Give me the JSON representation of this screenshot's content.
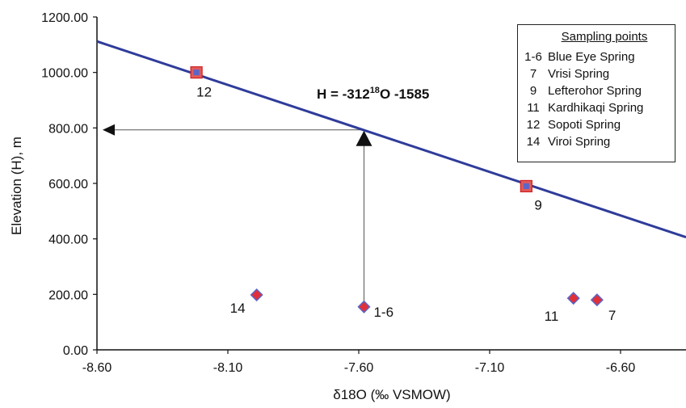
{
  "chart_data": {
    "type": "scatter",
    "xlabel": "δ18O (‰ VSMOW)",
    "ylabel": "Elevation (H), m",
    "xlim": [
      -8.6,
      -6.35
    ],
    "ylim": [
      0,
      1200
    ],
    "xticks": [
      -8.6,
      -8.1,
      -7.6,
      -7.1,
      -6.6
    ],
    "xtick_labels": [
      "-8.60",
      "-8.10",
      "-7.60",
      "-7.10",
      "-6.60"
    ],
    "yticks": [
      0,
      200,
      400,
      600,
      800,
      1000,
      1200
    ],
    "ytick_labels": [
      "0.00",
      "200.00",
      "400.00",
      "600.00",
      "800.00",
      "1000.00",
      "1200.00"
    ],
    "grid": false,
    "equation": {
      "prefix": "H = -312",
      "sup": "18",
      "suffix": "O -1585"
    },
    "line": {
      "color": "#2f3c9a",
      "points": [
        [
          -8.6,
          1112
        ],
        [
          -6.35,
          406
        ]
      ]
    },
    "square_points": [
      {
        "label": "12",
        "x": -8.22,
        "y": 1000
      },
      {
        "label": "9",
        "x": -6.96,
        "y": 590
      }
    ],
    "diamond_points": [
      {
        "label": "14",
        "x": -7.99,
        "y": 198
      },
      {
        "label": "1-6",
        "x": -7.58,
        "y": 155
      },
      {
        "label": "11",
        "x": -6.78,
        "y": 186
      },
      {
        "label": "7",
        "x": -6.69,
        "y": 180
      }
    ],
    "guide_lines": {
      "x": -7.58,
      "y": 793
    },
    "colors": {
      "line": "#2f3c9a",
      "marker_fill": "#e0303a",
      "marker_edge": "#5a66c8",
      "square_fill": "#e05a5a"
    },
    "legend": {
      "title": "Sampling points",
      "position": "top-right",
      "entries": [
        {
          "id": "1-6",
          "name": "Blue Eye Spring"
        },
        {
          "id": "7",
          "name": "Vrisi Spring"
        },
        {
          "id": "9",
          "name": "Lefterohor Spring"
        },
        {
          "id": "11",
          "name": " Kardhikaqi Spring"
        },
        {
          "id": "12",
          "name": "Sopoti Spring"
        },
        {
          "id": "14",
          "name": "Viroi Spring"
        }
      ]
    }
  }
}
